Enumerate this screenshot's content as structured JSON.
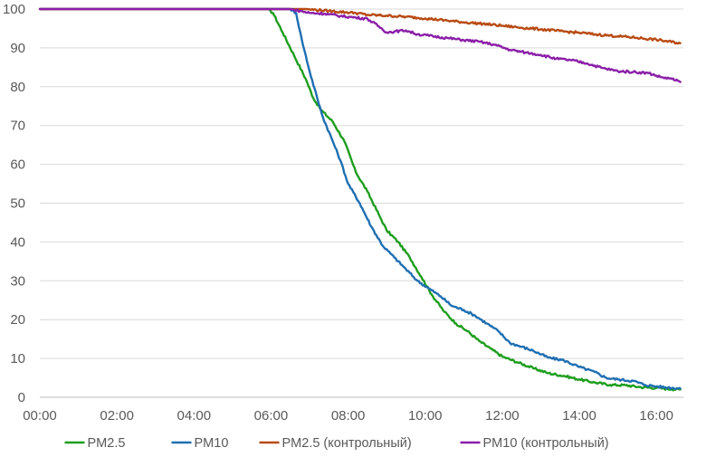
{
  "chart_data": {
    "type": "line",
    "title": "",
    "xlabel": "",
    "ylabel": "",
    "x_unit": "hours",
    "xlim": [
      0,
      16.7
    ],
    "ylim": [
      0,
      100
    ],
    "x_ticks": [
      {
        "value": 0,
        "label": "00:00"
      },
      {
        "value": 2,
        "label": "02:00"
      },
      {
        "value": 4,
        "label": "04:00"
      },
      {
        "value": 6,
        "label": "06:00"
      },
      {
        "value": 8,
        "label": "08:00"
      },
      {
        "value": 10,
        "label": "10:00"
      },
      {
        "value": 12,
        "label": "12:00"
      },
      {
        "value": 14,
        "label": "14:00"
      },
      {
        "value": 16,
        "label": "16:00"
      }
    ],
    "y_ticks": [
      {
        "value": 0,
        "label": "0"
      },
      {
        "value": 10,
        "label": "10"
      },
      {
        "value": 20,
        "label": "20"
      },
      {
        "value": 30,
        "label": "30"
      },
      {
        "value": 40,
        "label": "40"
      },
      {
        "value": 50,
        "label": "50"
      },
      {
        "value": 60,
        "label": "60"
      },
      {
        "value": 70,
        "label": "70"
      },
      {
        "value": 80,
        "label": "80"
      },
      {
        "value": 90,
        "label": "90"
      },
      {
        "value": 100,
        "label": "100"
      }
    ],
    "grid": "horizontal",
    "legend_position": "bottom",
    "series": [
      {
        "name": "PM2.5",
        "color": "#1e9e1e",
        "points": [
          [
            0,
            100
          ],
          [
            5.9,
            100
          ],
          [
            6.05,
            99
          ],
          [
            6.3,
            94
          ],
          [
            6.6,
            88
          ],
          [
            6.9,
            82
          ],
          [
            7.1,
            77
          ],
          [
            7.3,
            74
          ],
          [
            7.6,
            71
          ],
          [
            7.9,
            66
          ],
          [
            8.2,
            58
          ],
          [
            8.5,
            53
          ],
          [
            8.8,
            47
          ],
          [
            9.0,
            43
          ],
          [
            9.3,
            40
          ],
          [
            9.6,
            36
          ],
          [
            9.9,
            31
          ],
          [
            10.2,
            26
          ],
          [
            10.5,
            22
          ],
          [
            10.8,
            19
          ],
          [
            11.1,
            17
          ],
          [
            11.4,
            14.5
          ],
          [
            11.7,
            12.5
          ],
          [
            12.0,
            10.5
          ],
          [
            12.4,
            9
          ],
          [
            12.8,
            7.5
          ],
          [
            13.2,
            6.2
          ],
          [
            13.6,
            5.5
          ],
          [
            14.0,
            4.6
          ],
          [
            14.4,
            3.8
          ],
          [
            14.8,
            3.2
          ],
          [
            15.2,
            3.1
          ],
          [
            15.6,
            2.6
          ],
          [
            16.0,
            2.4
          ],
          [
            16.4,
            2.1
          ],
          [
            16.62,
            2.0
          ]
        ]
      },
      {
        "name": "PM10",
        "color": "#1f6fb2",
        "points": [
          [
            0,
            100
          ],
          [
            6.5,
            100
          ],
          [
            6.65,
            99
          ],
          [
            6.8,
            92
          ],
          [
            7.0,
            84
          ],
          [
            7.2,
            77
          ],
          [
            7.35,
            72
          ],
          [
            7.6,
            66
          ],
          [
            7.8,
            61
          ],
          [
            8.0,
            55
          ],
          [
            8.3,
            50
          ],
          [
            8.6,
            44
          ],
          [
            8.9,
            39
          ],
          [
            9.2,
            36
          ],
          [
            9.5,
            33
          ],
          [
            9.8,
            30
          ],
          [
            10.1,
            28
          ],
          [
            10.4,
            26
          ],
          [
            10.7,
            23.5
          ],
          [
            11.0,
            22.5
          ],
          [
            11.3,
            21
          ],
          [
            11.6,
            19
          ],
          [
            11.9,
            17
          ],
          [
            12.2,
            14
          ],
          [
            12.5,
            13
          ],
          [
            12.8,
            12
          ],
          [
            13.2,
            10.2
          ],
          [
            13.6,
            9.5
          ],
          [
            14.0,
            7.8
          ],
          [
            14.4,
            6.5
          ],
          [
            14.7,
            5
          ],
          [
            15.0,
            4.6
          ],
          [
            15.4,
            4.2
          ],
          [
            15.7,
            3.2
          ],
          [
            16.0,
            2.8
          ],
          [
            16.3,
            2.5
          ],
          [
            16.62,
            2.3
          ]
        ]
      },
      {
        "name": "PM2.5 (контрольный)",
        "color": "#b84a12",
        "points": [
          [
            0,
            100
          ],
          [
            6.9,
            100
          ],
          [
            7.5,
            99.5
          ],
          [
            8.2,
            99
          ],
          [
            8.5,
            98.5
          ],
          [
            9.0,
            98.3
          ],
          [
            9.5,
            98
          ],
          [
            10.0,
            97.6
          ],
          [
            10.5,
            97.1
          ],
          [
            11.0,
            96.6
          ],
          [
            11.5,
            96.2
          ],
          [
            12.0,
            95.7
          ],
          [
            12.5,
            95.2
          ],
          [
            13.0,
            94.8
          ],
          [
            13.5,
            94.3
          ],
          [
            14.0,
            93.9
          ],
          [
            14.5,
            93.4
          ],
          [
            15.0,
            93
          ],
          [
            15.5,
            92.6
          ],
          [
            16.0,
            92.1
          ],
          [
            16.62,
            91.2
          ]
        ]
      },
      {
        "name": "PM10 (контрольный)",
        "color": "#8b1fa8",
        "points": [
          [
            0,
            100
          ],
          [
            6.5,
            100
          ],
          [
            6.75,
            99.5
          ],
          [
            7.0,
            99
          ],
          [
            7.4,
            98.8
          ],
          [
            7.8,
            98.2
          ],
          [
            8.2,
            97.8
          ],
          [
            8.5,
            97.5
          ],
          [
            8.8,
            95.5
          ],
          [
            9.0,
            94
          ],
          [
            9.2,
            94.2
          ],
          [
            9.5,
            94.5
          ],
          [
            9.8,
            93.5
          ],
          [
            10.2,
            93
          ],
          [
            10.6,
            92.5
          ],
          [
            11.0,
            92
          ],
          [
            11.4,
            91.6
          ],
          [
            11.8,
            90.8
          ],
          [
            12.2,
            89.5
          ],
          [
            12.6,
            88.8
          ],
          [
            13.0,
            88.2
          ],
          [
            13.4,
            87.2
          ],
          [
            13.8,
            86.8
          ],
          [
            14.2,
            86
          ],
          [
            14.6,
            84.8
          ],
          [
            15.0,
            84
          ],
          [
            15.4,
            83.8
          ],
          [
            15.8,
            83.5
          ],
          [
            16.1,
            82.5
          ],
          [
            16.4,
            82
          ],
          [
            16.62,
            81.2
          ]
        ]
      }
    ]
  }
}
